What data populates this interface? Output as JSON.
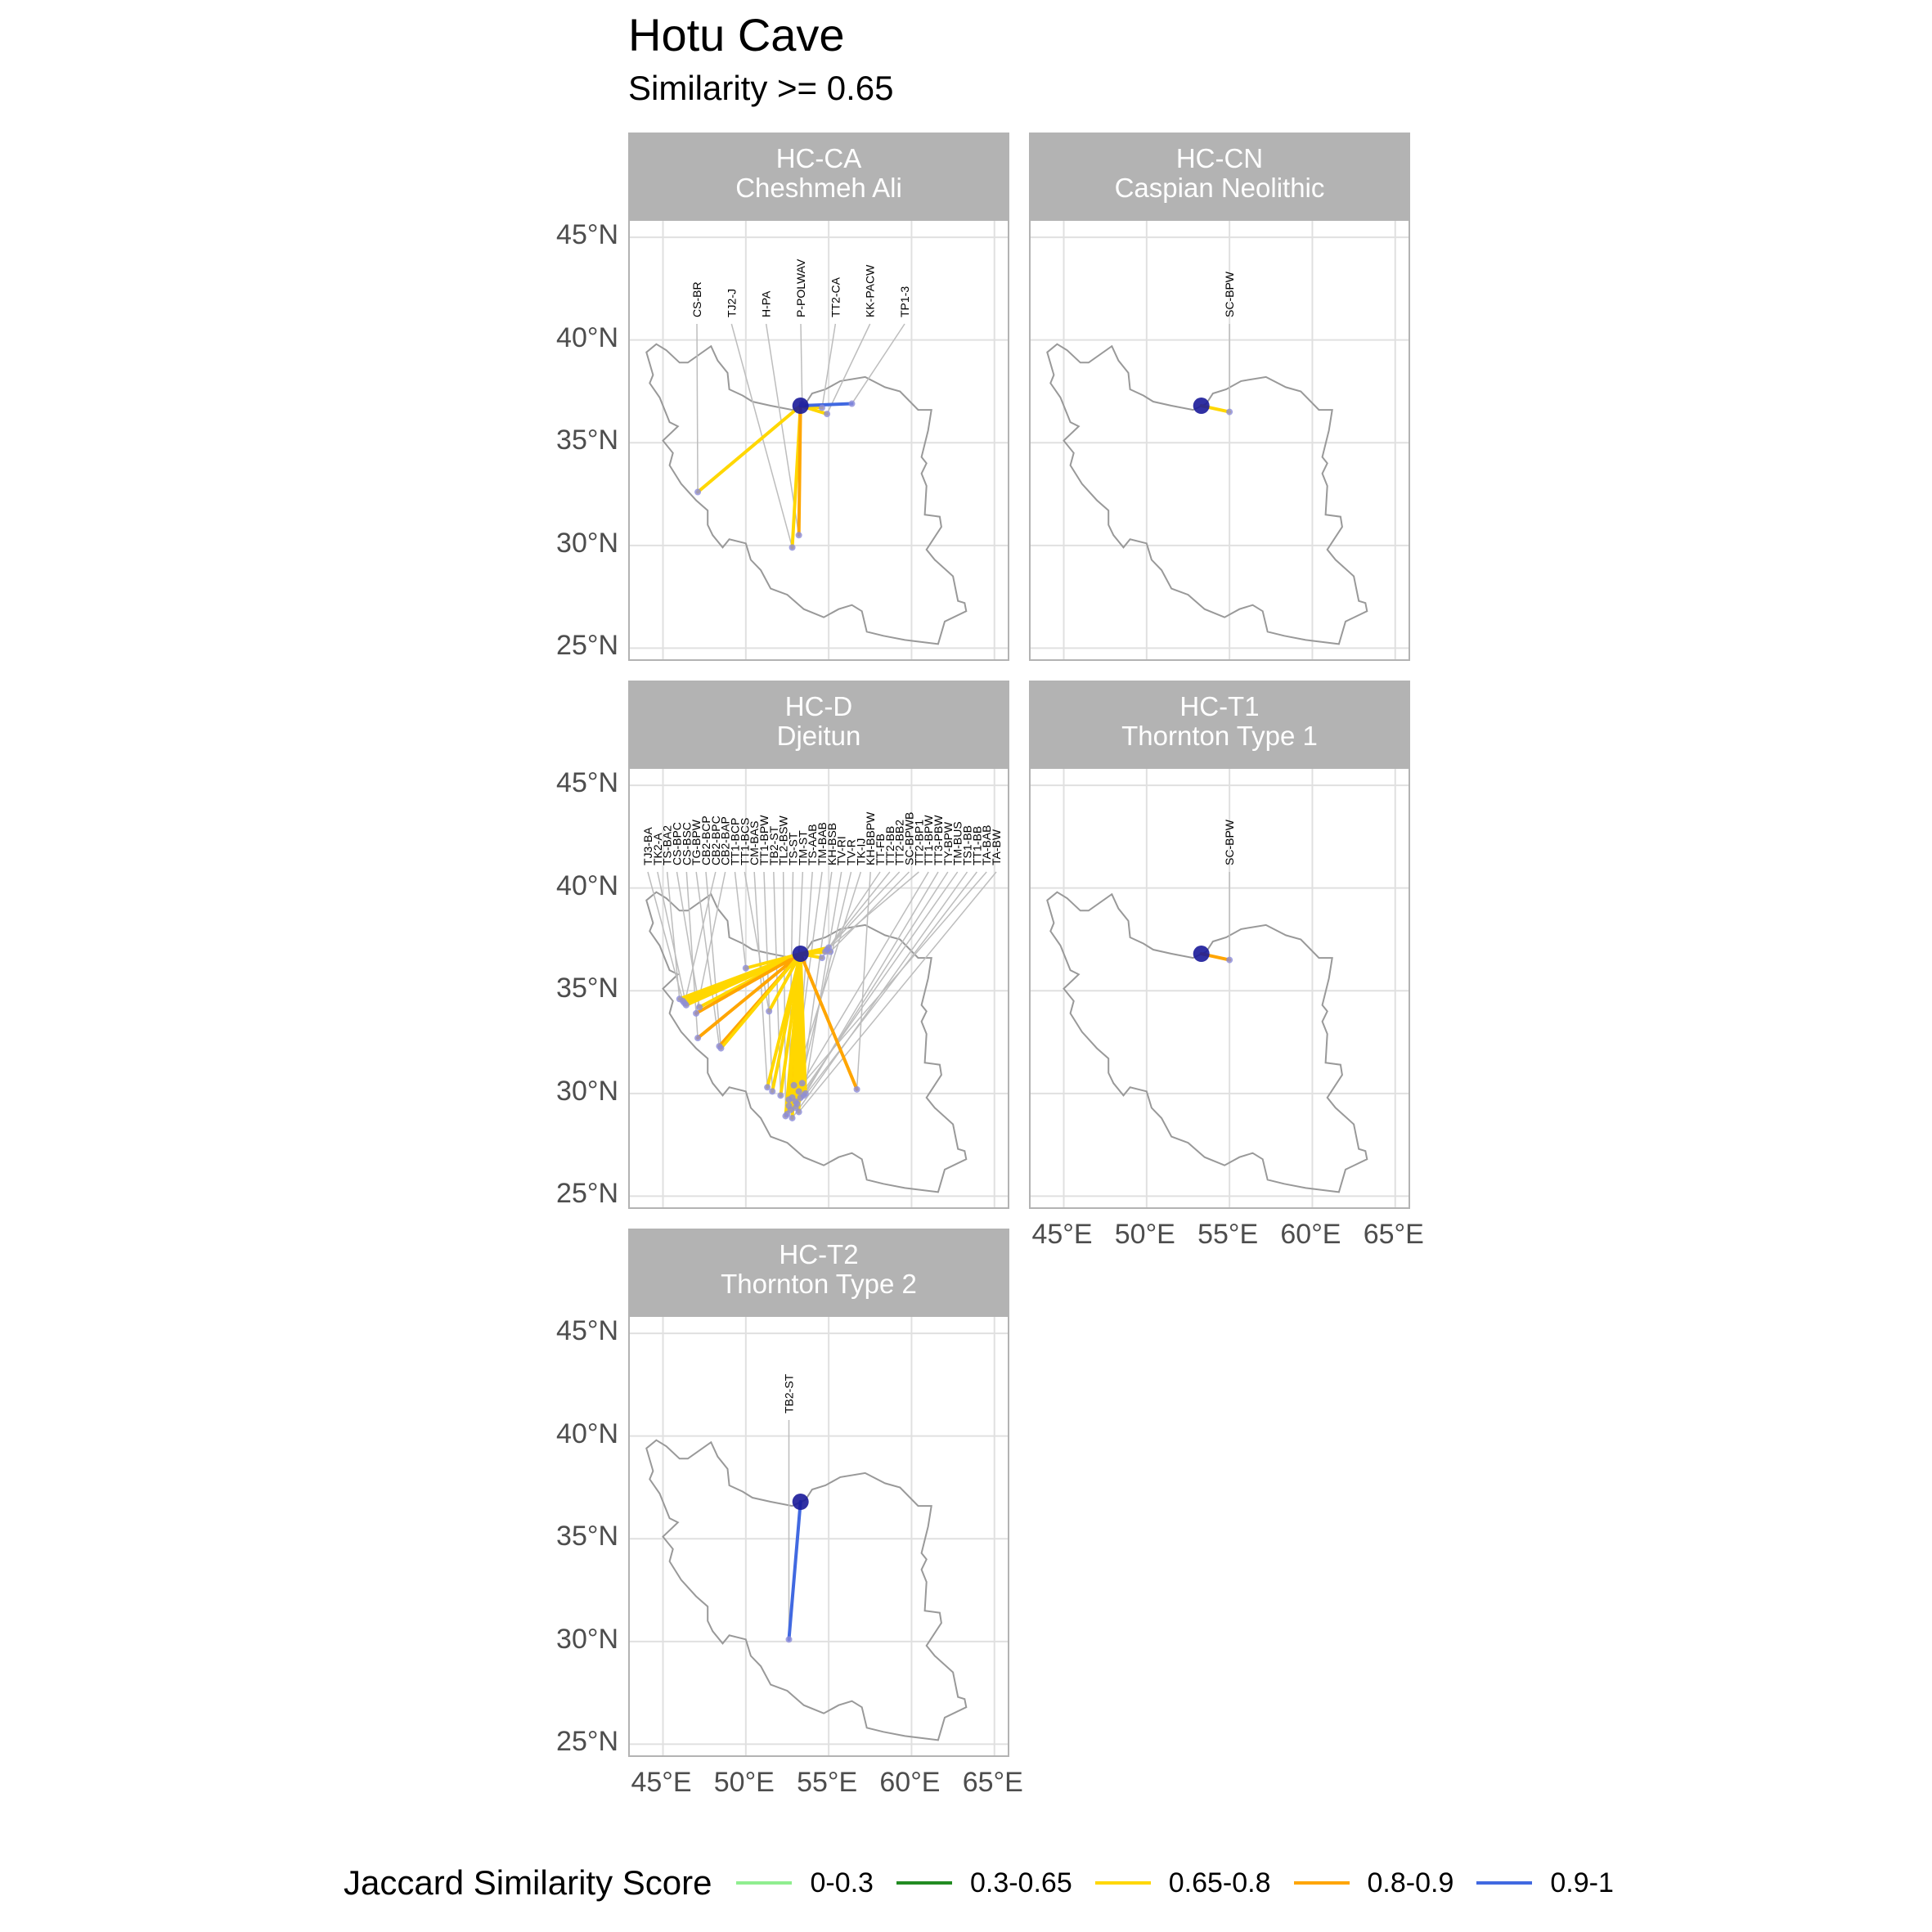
{
  "title": "Hotu Cave",
  "subtitle": "Similarity >= 0.65",
  "colors": {
    "0-0.3": "#90ee90",
    "0.3-0.65": "#228b22",
    "0.65-0.8": "#ffd700",
    "0.8-0.9": "#ffa500",
    "0.9-1": "#4169e1",
    "site": "#1a1a99",
    "border": "#999999",
    "strip": "#b3b3b3"
  },
  "legend": {
    "title": "Jaccard Similarity Score",
    "items": [
      {
        "label": "0-0.3",
        "color": "#90ee90"
      },
      {
        "label": "0.3-0.65",
        "color": "#228b22"
      },
      {
        "label": "0.65-0.8",
        "color": "#ffd700"
      },
      {
        "label": "0.8-0.9",
        "color": "#ffa500"
      },
      {
        "label": "0.9-1",
        "color": "#4169e1"
      }
    ]
  },
  "axes": {
    "x_ticks": [
      "45°E",
      "50°E",
      "55°E",
      "60°E",
      "65°E"
    ],
    "y_ticks": [
      "45°N",
      "40°N",
      "35°N",
      "30°N",
      "25°N"
    ],
    "x_values": [
      45,
      50,
      55,
      60,
      65
    ],
    "y_values": [
      45,
      40,
      35,
      30,
      25
    ],
    "xlim": [
      43,
      66
    ],
    "ylim": [
      24.3,
      45.8
    ]
  },
  "origin": {
    "lon": 53.3,
    "lat": 36.8
  },
  "panels": [
    {
      "code": "HC-CA",
      "name": "Cheshmeh Ali",
      "col": 0,
      "row": 0,
      "links": [
        {
          "label": "CS-BR",
          "lon": 47.1,
          "lat": 32.6,
          "score": "0.65-0.8"
        },
        {
          "label": "TJ2-J",
          "lon": 52.8,
          "lat": 29.9,
          "score": "0.65-0.8"
        },
        {
          "label": "H-PA",
          "lon": 53.2,
          "lat": 30.5,
          "score": "0.8-0.9"
        },
        {
          "label": "P-POLWAV",
          "lon": 53.4,
          "lat": 36.9,
          "score": "0.9-1"
        },
        {
          "label": "TT2-CA",
          "lon": 54.6,
          "lat": 36.7,
          "score": "0.65-0.8"
        },
        {
          "label": "KK-PACW",
          "lon": 54.9,
          "lat": 36.4,
          "score": "0.65-0.8"
        },
        {
          "label": "TP1-3",
          "lon": 56.4,
          "lat": 36.9,
          "score": "0.9-1"
        }
      ]
    },
    {
      "code": "HC-CN",
      "name": "Caspian Neolithic",
      "col": 1,
      "row": 0,
      "links": [
        {
          "label": "SC-BPW",
          "lon": 55.0,
          "lat": 36.5,
          "score": "0.65-0.8"
        }
      ]
    },
    {
      "code": "HC-D",
      "name": "Djeitun",
      "col": 0,
      "row": 1,
      "links": [
        {
          "label": "TJ3-BA",
          "lon": 46.2,
          "lat": 34.5,
          "score": "0.65-0.8"
        },
        {
          "label": "TK2-A",
          "lon": 46.4,
          "lat": 34.3,
          "score": "0.65-0.8"
        },
        {
          "label": "TS-BA2",
          "lon": 46.0,
          "lat": 34.6,
          "score": "0.65-0.8"
        },
        {
          "label": "CS-BPC",
          "lon": 47.2,
          "lat": 34.2,
          "score": "0.65-0.8"
        },
        {
          "label": "CS-BSC",
          "lon": 47.1,
          "lat": 32.7,
          "score": "0.8-0.9"
        },
        {
          "label": "TG-BPW",
          "lon": 48.4,
          "lat": 32.3,
          "score": "0.8-0.9"
        },
        {
          "label": "CB2-BCP",
          "lon": 48.5,
          "lat": 32.2,
          "score": "0.65-0.8"
        },
        {
          "label": "CB2-BPC",
          "lon": 46.3,
          "lat": 34.4,
          "score": "0.65-0.8"
        },
        {
          "label": "CB2-BAP",
          "lon": 47.0,
          "lat": 33.9,
          "score": "0.8-0.9"
        },
        {
          "label": "TT1-BCP",
          "lon": 50.0,
          "lat": 36.1,
          "score": "0.65-0.8"
        },
        {
          "label": "TT1-BCS",
          "lon": 51.4,
          "lat": 34.0,
          "score": "0.65-0.8"
        },
        {
          "label": "CM-BAS",
          "lon": 51.3,
          "lat": 30.3,
          "score": "0.65-0.8"
        },
        {
          "label": "TT1-BPW",
          "lon": 51.6,
          "lat": 30.1,
          "score": "0.65-0.8"
        },
        {
          "label": "TB2-ST",
          "lon": 52.1,
          "lat": 29.9,
          "score": "0.65-0.8"
        },
        {
          "label": "TL2-BSW",
          "lon": 52.4,
          "lat": 28.9,
          "score": "0.65-0.8"
        },
        {
          "label": "TS-ST",
          "lon": 52.6,
          "lat": 29.4,
          "score": "0.8-0.9"
        },
        {
          "label": "TM-ST",
          "lon": 52.8,
          "lat": 29.8,
          "score": "0.65-0.8"
        },
        {
          "label": "TS-AAB",
          "lon": 53.0,
          "lat": 29.6,
          "score": "0.65-0.8"
        },
        {
          "label": "TM-BAB",
          "lon": 52.7,
          "lat": 29.2,
          "score": "0.65-0.8"
        },
        {
          "label": "KH-BSB",
          "lon": 53.3,
          "lat": 29.8,
          "score": "0.65-0.8"
        },
        {
          "label": "TV-RI",
          "lon": 53.5,
          "lat": 29.9,
          "score": "0.65-0.8"
        },
        {
          "label": "TV-R",
          "lon": 53.2,
          "lat": 30.1,
          "score": "0.65-0.8"
        },
        {
          "label": "TK-IJ",
          "lon": 52.9,
          "lat": 30.4,
          "score": "0.8-0.9"
        },
        {
          "label": "KH-BBPW",
          "lon": 56.7,
          "lat": 30.2,
          "score": "0.8-0.9"
        },
        {
          "label": "TT-FB",
          "lon": 54.6,
          "lat": 36.6,
          "score": "0.65-0.8"
        },
        {
          "label": "TT2-BB",
          "lon": 54.8,
          "lat": 36.9,
          "score": "0.65-0.8"
        },
        {
          "label": "TT2-BB2",
          "lon": 55.0,
          "lat": 37.1,
          "score": "0.65-0.8"
        },
        {
          "label": "SC-BPWB",
          "lon": 55.1,
          "lat": 36.9,
          "score": "0.65-0.8"
        },
        {
          "label": "TT2-BP1",
          "lon": 54.9,
          "lat": 37.0,
          "score": "0.65-0.8"
        },
        {
          "label": "TT1-BPW",
          "lon": 53.4,
          "lat": 30.5,
          "score": "0.65-0.8"
        },
        {
          "label": "TT3-PBW",
          "lon": 53.6,
          "lat": 30.0,
          "score": "0.65-0.8"
        },
        {
          "label": "TY-BPW",
          "lon": 53.1,
          "lat": 29.5,
          "score": "0.65-0.8"
        },
        {
          "label": "TM-BUS",
          "lon": 52.5,
          "lat": 29.0,
          "score": "0.65-0.8"
        },
        {
          "label": "TS1-BB",
          "lon": 52.8,
          "lat": 28.8,
          "score": "0.65-0.8"
        },
        {
          "label": "TT1-BB",
          "lon": 53.0,
          "lat": 29.3,
          "score": "0.65-0.8"
        },
        {
          "label": "TA-BAB",
          "lon": 52.6,
          "lat": 29.7,
          "score": "0.65-0.8"
        },
        {
          "label": "TA-BW",
          "lon": 53.2,
          "lat": 29.1,
          "score": "0.65-0.8"
        }
      ]
    },
    {
      "code": "HC-T1",
      "name": "Thornton Type 1",
      "col": 1,
      "row": 1,
      "links": [
        {
          "label": "SC-BPW",
          "lon": 55.0,
          "lat": 36.5,
          "score": "0.8-0.9"
        }
      ]
    },
    {
      "code": "HC-T2",
      "name": "Thornton Type 2",
      "col": 0,
      "row": 2,
      "links": [
        {
          "label": "TB2-ST",
          "lon": 52.6,
          "lat": 30.1,
          "score": "0.9-1"
        }
      ]
    }
  ]
}
